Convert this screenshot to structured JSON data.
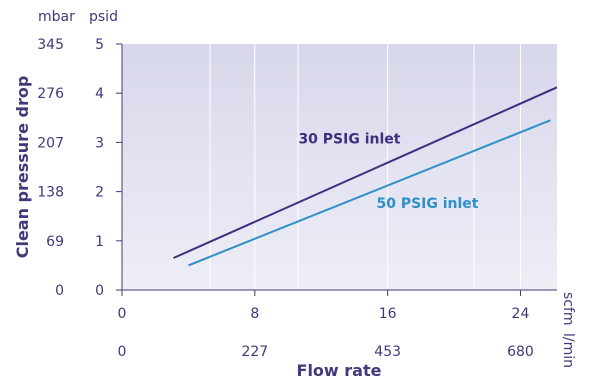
{
  "chart_data": {
    "type": "line",
    "title": "",
    "xlabel": "Flow rate",
    "ylabel": "Clean pressure drop",
    "x_primary": {
      "unit": "scfm",
      "ticks": [
        "0",
        "8",
        "16",
        "24"
      ],
      "values": [
        0,
        8,
        16,
        24
      ],
      "range": [
        0,
        26.2
      ]
    },
    "x_secondary": {
      "unit": "l/min",
      "ticks": [
        "0",
        "227",
        "453",
        "680"
      ],
      "values_scfm": [
        0,
        8,
        16,
        24
      ]
    },
    "y_primary": {
      "unit": "psid",
      "ticks": [
        "0",
        "1",
        "2",
        "3",
        "4",
        "5"
      ],
      "values": [
        0,
        1,
        2,
        3,
        4,
        5
      ],
      "range": [
        0,
        5
      ]
    },
    "y_secondary": {
      "unit": "mbar",
      "ticks": [
        "0",
        "69",
        "138",
        "207",
        "276",
        "345"
      ],
      "values_psid": [
        0,
        1,
        2,
        3,
        4,
        5
      ]
    },
    "grid": true,
    "series": [
      {
        "name": "30 PSIG inlet",
        "color": "#3e2f7f",
        "x": [
          3.1,
          26.2
        ],
        "y": [
          0.65,
          4.12
        ]
      },
      {
        "name": "50 PSIG inlet",
        "color": "#2e90c6",
        "x": [
          4.0,
          25.8
        ],
        "y": [
          0.5,
          3.45
        ]
      }
    ]
  }
}
